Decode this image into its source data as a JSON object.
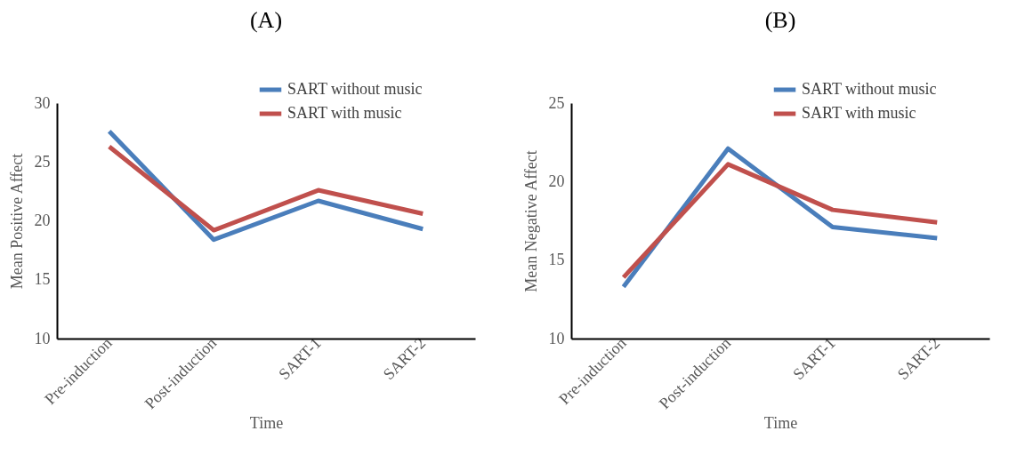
{
  "chart_data": [
    {
      "type": "line",
      "title": "(A)",
      "xlabel": "Time",
      "ylabel": "Mean Positive Affect",
      "categories": [
        "Pre-induction",
        "Post-induction",
        "SART-1",
        "SART-2"
      ],
      "ylim": [
        10,
        30
      ],
      "yticks": [
        10,
        15,
        20,
        25,
        30
      ],
      "legend": "top right",
      "series": [
        {
          "name": "SART without music",
          "color": "#4a7ebb",
          "values": [
            27.6,
            18.4,
            21.7,
            19.3
          ]
        },
        {
          "name": "SART with music",
          "color": "#c0504d",
          "values": [
            26.3,
            19.2,
            22.6,
            20.6
          ]
        }
      ]
    },
    {
      "type": "line",
      "title": "(B)",
      "xlabel": "Time",
      "ylabel": "Mean Negative Affect",
      "categories": [
        "Pre-induction",
        "Post-induction",
        "SART-1",
        "SART-2"
      ],
      "ylim": [
        10,
        25
      ],
      "yticks": [
        10,
        15,
        20,
        25
      ],
      "legend": "top right",
      "series": [
        {
          "name": "SART without music",
          "color": "#4a7ebb",
          "values": [
            13.3,
            22.1,
            17.1,
            16.4
          ]
        },
        {
          "name": "SART with music",
          "color": "#c0504d",
          "values": [
            13.9,
            21.1,
            18.2,
            17.4
          ]
        }
      ]
    }
  ]
}
